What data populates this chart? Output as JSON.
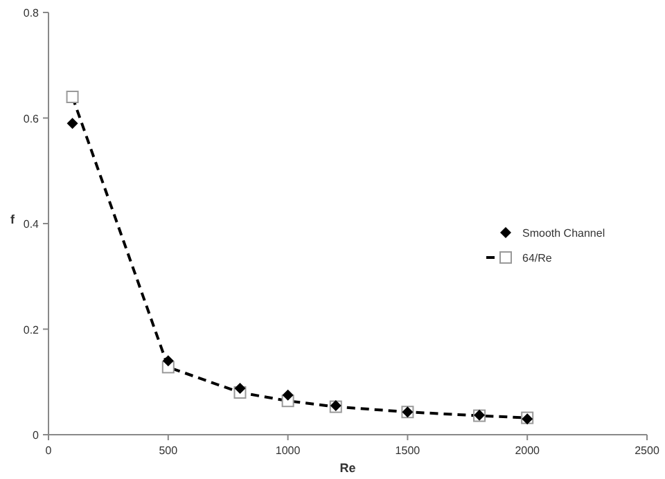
{
  "chart_data": {
    "type": "scatter",
    "xlabel": "Re",
    "ylabel": "f",
    "xlim": [
      0,
      2500
    ],
    "ylim": [
      0,
      0.8
    ],
    "xticks": [
      0,
      500,
      1000,
      1500,
      2000,
      2500
    ],
    "yticks": [
      0,
      0.2,
      0.4,
      0.6,
      0.8
    ],
    "grid": false,
    "legend": "right",
    "series": [
      {
        "name": "Smooth Channel",
        "marker": "diamond",
        "color": "#000000",
        "x": [
          100,
          500,
          800,
          1000,
          1200,
          1500,
          1800,
          2000
        ],
        "values": [
          0.59,
          0.14,
          0.088,
          0.075,
          0.055,
          0.043,
          0.037,
          0.03
        ]
      },
      {
        "name": "64/Re",
        "type": "line",
        "marker": "square",
        "line_style": "dashed",
        "color": "#000000",
        "x": [
          100,
          500,
          800,
          1000,
          1200,
          1500,
          1800,
          2000
        ],
        "values": [
          0.64,
          0.128,
          0.08,
          0.064,
          0.053,
          0.043,
          0.036,
          0.032
        ]
      }
    ]
  }
}
